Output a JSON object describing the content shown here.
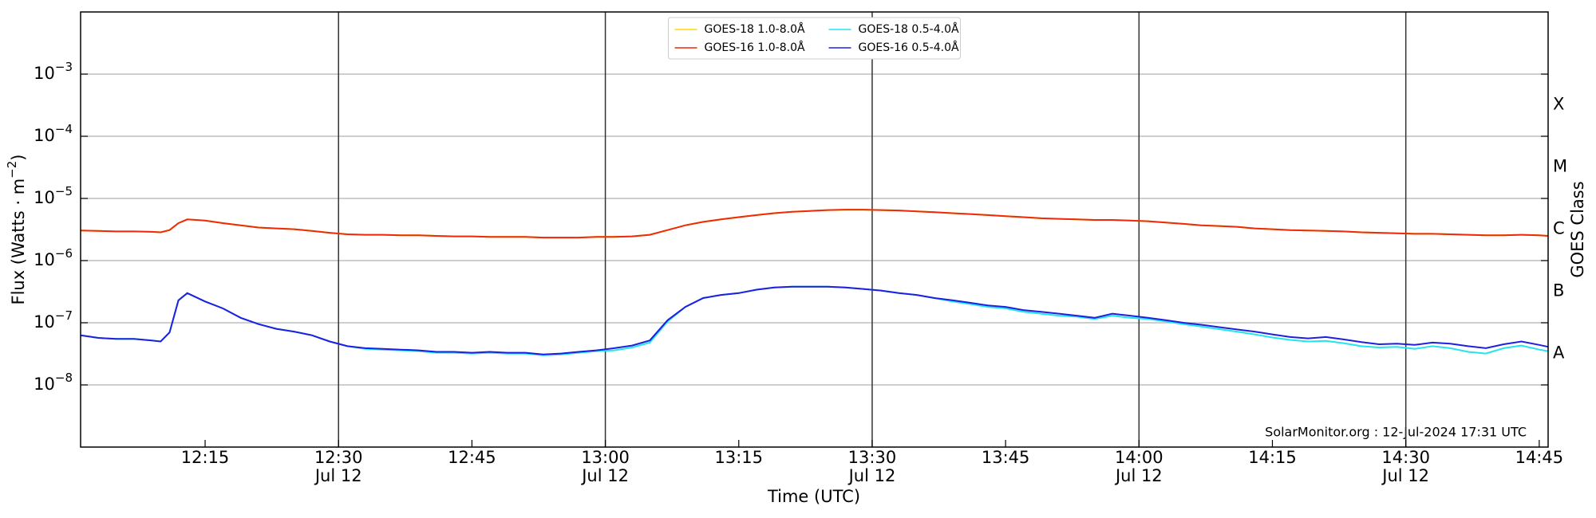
{
  "chart_data": {
    "type": "line",
    "xlabel": "Time (UTC)",
    "ylabel": [
      "Flux (Watts · m",
      "−2",
      ")"
    ],
    "y2label": "GOES Class",
    "annotation": "SolarMonitor.org : 12-Jul-2024 17:31 UTC",
    "log_y": true,
    "grid": true,
    "legend": "upper center",
    "xlim": [
      "12:01",
      "14:46"
    ],
    "xticks": [
      {
        "value": "12:15",
        "label": [
          "12:15"
        ]
      },
      {
        "value": "12:30",
        "label": [
          "12:30",
          "Jul 12"
        ]
      },
      {
        "value": "12:45",
        "label": [
          "12:45"
        ]
      },
      {
        "value": "13:00",
        "label": [
          "13:00",
          "Jul 12"
        ]
      },
      {
        "value": "13:15",
        "label": [
          "13:15"
        ]
      },
      {
        "value": "13:30",
        "label": [
          "13:30",
          "Jul 12"
        ]
      },
      {
        "value": "13:45",
        "label": [
          "13:45"
        ]
      },
      {
        "value": "14:00",
        "label": [
          "14:00",
          "Jul 12"
        ]
      },
      {
        "value": "14:15",
        "label": [
          "14:15"
        ]
      },
      {
        "value": "14:30",
        "label": [
          "14:30",
          "Jul 12"
        ]
      },
      {
        "value": "14:45",
        "label": [
          "14:45"
        ]
      }
    ],
    "vlines": [
      "12:30",
      "13:00",
      "13:30",
      "14:00",
      "14:30"
    ],
    "ylim": [
      1e-09,
      0.01
    ],
    "yticks": [
      {
        "value": 1e-08,
        "label": [
          "10",
          "−8"
        ]
      },
      {
        "value": 1e-07,
        "label": [
          "10",
          "−7"
        ]
      },
      {
        "value": 1e-06,
        "label": [
          "10",
          "−6"
        ]
      },
      {
        "value": 1e-05,
        "label": [
          "10",
          "−5"
        ]
      },
      {
        "value": 0.0001,
        "label": [
          "10",
          "−4"
        ]
      },
      {
        "value": 0.001,
        "label": [
          "10",
          "−3"
        ]
      }
    ],
    "y2lim": [
      1e-09,
      0.01
    ],
    "y2ticks": [
      {
        "value": 3.2e-08,
        "label": "A"
      },
      {
        "value": 3.2e-07,
        "label": "B"
      },
      {
        "value": 3.2e-06,
        "label": "C"
      },
      {
        "value": 3.2e-05,
        "label": "M"
      },
      {
        "value": 0.00032,
        "label": "X"
      }
    ],
    "x": [
      "12:01",
      "12:03",
      "12:05",
      "12:07",
      "12:09",
      "12:10",
      "12:11",
      "12:12",
      "12:13",
      "12:15",
      "12:17",
      "12:19",
      "12:21",
      "12:23",
      "12:25",
      "12:27",
      "12:29",
      "12:31",
      "12:33",
      "12:35",
      "12:37",
      "12:39",
      "12:41",
      "12:43",
      "12:45",
      "12:47",
      "12:49",
      "12:51",
      "12:53",
      "12:55",
      "12:57",
      "12:59",
      "13:01",
      "13:03",
      "13:05",
      "13:07",
      "13:09",
      "13:11",
      "13:13",
      "13:15",
      "13:17",
      "13:19",
      "13:21",
      "13:23",
      "13:25",
      "13:27",
      "13:29",
      "13:31",
      "13:33",
      "13:35",
      "13:37",
      "13:39",
      "13:41",
      "13:43",
      "13:45",
      "13:47",
      "13:49",
      "13:51",
      "13:53",
      "13:55",
      "13:57",
      "13:59",
      "14:01",
      "14:03",
      "14:05",
      "14:07",
      "14:09",
      "14:11",
      "14:13",
      "14:15",
      "14:17",
      "14:19",
      "14:21",
      "14:23",
      "14:25",
      "14:27",
      "14:29",
      "14:31",
      "14:33",
      "14:35",
      "14:37",
      "14:39",
      "14:41",
      "14:43",
      "14:45",
      "14:46"
    ],
    "series": [
      {
        "name": "GOES-18 1.0-8.0Å",
        "color": "#ffd700",
        "values": [
          3.05e-06,
          3e-06,
          2.95e-06,
          2.95e-06,
          2.9e-06,
          2.85e-06,
          3.1e-06,
          4e-06,
          4.6e-06,
          4.4e-06,
          4e-06,
          3.7e-06,
          3.4e-06,
          3.3e-06,
          3.2e-06,
          3e-06,
          2.8e-06,
          2.65e-06,
          2.6e-06,
          2.6e-06,
          2.55e-06,
          2.55e-06,
          2.5e-06,
          2.45e-06,
          2.45e-06,
          2.4e-06,
          2.4e-06,
          2.4e-06,
          2.35e-06,
          2.35e-06,
          2.35e-06,
          2.4e-06,
          2.4e-06,
          2.45e-06,
          2.6e-06,
          3.1e-06,
          3.7e-06,
          4.2e-06,
          4.6e-06,
          5e-06,
          5.4e-06,
          5.8e-06,
          6.1e-06,
          6.3e-06,
          6.5e-06,
          6.6e-06,
          6.6e-06,
          6.5e-06,
          6.4e-06,
          6.2e-06,
          6e-06,
          5.8e-06,
          5.6e-06,
          5.4e-06,
          5.2e-06,
          5e-06,
          4.8e-06,
          4.7e-06,
          4.6e-06,
          4.5e-06,
          4.5e-06,
          4.4e-06,
          4.3e-06,
          4.1e-06,
          3.9e-06,
          3.7e-06,
          3.6e-06,
          3.5e-06,
          3.3e-06,
          3.2e-06,
          3.1e-06,
          3.05e-06,
          3e-06,
          2.95e-06,
          2.85e-06,
          2.8e-06,
          2.75e-06,
          2.7e-06,
          2.7e-06,
          2.65e-06,
          2.6e-06,
          2.55e-06,
          2.55e-06,
          2.6e-06,
          2.55e-06,
          2.5e-06
        ]
      },
      {
        "name": "GOES-16 1.0-8.0Å",
        "color": "#ee2a0a",
        "values": [
          3.05e-06,
          3e-06,
          2.95e-06,
          2.95e-06,
          2.9e-06,
          2.85e-06,
          3.1e-06,
          4e-06,
          4.6e-06,
          4.4e-06,
          4e-06,
          3.7e-06,
          3.4e-06,
          3.3e-06,
          3.2e-06,
          3e-06,
          2.8e-06,
          2.65e-06,
          2.6e-06,
          2.6e-06,
          2.55e-06,
          2.55e-06,
          2.5e-06,
          2.45e-06,
          2.45e-06,
          2.4e-06,
          2.4e-06,
          2.4e-06,
          2.35e-06,
          2.35e-06,
          2.35e-06,
          2.4e-06,
          2.4e-06,
          2.45e-06,
          2.6e-06,
          3.1e-06,
          3.7e-06,
          4.2e-06,
          4.6e-06,
          5e-06,
          5.4e-06,
          5.8e-06,
          6.1e-06,
          6.3e-06,
          6.5e-06,
          6.6e-06,
          6.6e-06,
          6.5e-06,
          6.4e-06,
          6.2e-06,
          6e-06,
          5.8e-06,
          5.6e-06,
          5.4e-06,
          5.2e-06,
          5e-06,
          4.8e-06,
          4.7e-06,
          4.6e-06,
          4.5e-06,
          4.5e-06,
          4.4e-06,
          4.3e-06,
          4.1e-06,
          3.9e-06,
          3.7e-06,
          3.6e-06,
          3.5e-06,
          3.3e-06,
          3.2e-06,
          3.1e-06,
          3.05e-06,
          3e-06,
          2.95e-06,
          2.85e-06,
          2.8e-06,
          2.75e-06,
          2.7e-06,
          2.7e-06,
          2.65e-06,
          2.6e-06,
          2.55e-06,
          2.55e-06,
          2.6e-06,
          2.55e-06,
          2.5e-06
        ]
      },
      {
        "name": "GOES-18 0.5-4.0Å",
        "color": "#22e5ee",
        "values": [
          6.3e-08,
          5.7e-08,
          5.5e-08,
          5.5e-08,
          5.2e-08,
          5e-08,
          7e-08,
          2.3e-07,
          3e-07,
          2.2e-07,
          1.7e-07,
          1.2e-07,
          9.5e-08,
          8e-08,
          7.2e-08,
          6.3e-08,
          5e-08,
          4.2e-08,
          3.8e-08,
          3.7e-08,
          3.6e-08,
          3.5e-08,
          3.3e-08,
          3.3e-08,
          3.2e-08,
          3.3e-08,
          3.2e-08,
          3.2e-08,
          3e-08,
          3.1e-08,
          3.3e-08,
          3.5e-08,
          3.6e-08,
          4e-08,
          4.8e-08,
          1.05e-07,
          1.8e-07,
          2.5e-07,
          2.8e-07,
          3e-07,
          3.4e-07,
          3.7e-07,
          3.8e-07,
          3.8e-07,
          3.8e-07,
          3.7e-07,
          3.5e-07,
          3.3e-07,
          3e-07,
          2.8e-07,
          2.5e-07,
          2.2e-07,
          2e-07,
          1.8e-07,
          1.7e-07,
          1.5e-07,
          1.4e-07,
          1.3e-07,
          1.25e-07,
          1.15e-07,
          1.3e-07,
          1.2e-07,
          1.15e-07,
          1.05e-07,
          9.5e-08,
          8.7e-08,
          7.9e-08,
          7.2e-08,
          6.5e-08,
          5.8e-08,
          5.3e-08,
          5e-08,
          5.1e-08,
          4.7e-08,
          4.2e-08,
          4e-08,
          4.1e-08,
          3.8e-08,
          4.2e-08,
          3.9e-08,
          3.4e-08,
          3.2e-08,
          3.9e-08,
          4.3e-08,
          3.7e-08,
          3.5e-08
        ]
      },
      {
        "name": "GOES-16 0.5-4.0Å",
        "color": "#1f1fe0",
        "values": [
          6.3e-08,
          5.7e-08,
          5.5e-08,
          5.5e-08,
          5.2e-08,
          5e-08,
          7e-08,
          2.3e-07,
          3e-07,
          2.2e-07,
          1.7e-07,
          1.2e-07,
          9.5e-08,
          8e-08,
          7.2e-08,
          6.3e-08,
          5e-08,
          4.2e-08,
          3.9e-08,
          3.8e-08,
          3.7e-08,
          3.6e-08,
          3.4e-08,
          3.4e-08,
          3.3e-08,
          3.4e-08,
          3.3e-08,
          3.3e-08,
          3.1e-08,
          3.2e-08,
          3.4e-08,
          3.6e-08,
          3.9e-08,
          4.3e-08,
          5.2e-08,
          1.1e-07,
          1.8e-07,
          2.5e-07,
          2.8e-07,
          3e-07,
          3.4e-07,
          3.7e-07,
          3.8e-07,
          3.8e-07,
          3.8e-07,
          3.7e-07,
          3.5e-07,
          3.3e-07,
          3e-07,
          2.8e-07,
          2.5e-07,
          2.3e-07,
          2.1e-07,
          1.9e-07,
          1.8e-07,
          1.6e-07,
          1.5e-07,
          1.4e-07,
          1.3e-07,
          1.2e-07,
          1.4e-07,
          1.3e-07,
          1.2e-07,
          1.1e-07,
          1e-07,
          9.3e-08,
          8.5e-08,
          7.8e-08,
          7.2e-08,
          6.5e-08,
          5.9e-08,
          5.6e-08,
          5.9e-08,
          5.4e-08,
          4.9e-08,
          4.5e-08,
          4.6e-08,
          4.4e-08,
          4.8e-08,
          4.6e-08,
          4.2e-08,
          3.9e-08,
          4.5e-08,
          5e-08,
          4.4e-08,
          4.1e-08
        ]
      }
    ]
  }
}
